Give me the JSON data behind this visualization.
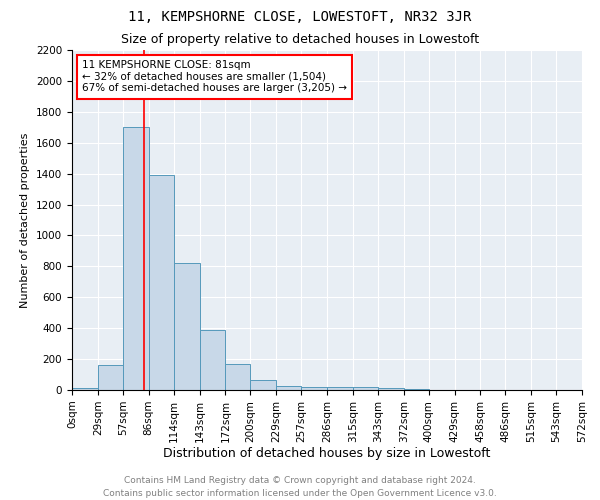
{
  "title": "11, KEMPSHORNE CLOSE, LOWESTOFT, NR32 3JR",
  "subtitle": "Size of property relative to detached houses in Lowestoft",
  "xlabel": "Distribution of detached houses by size in Lowestoft",
  "ylabel": "Number of detached properties",
  "bin_edges": [
    0,
    29,
    57,
    86,
    114,
    143,
    172,
    200,
    229,
    257,
    286,
    315,
    343,
    372,
    400,
    429,
    458,
    486,
    515,
    543,
    572
  ],
  "bar_heights": [
    10,
    160,
    1700,
    1390,
    820,
    390,
    170,
    65,
    25,
    20,
    20,
    20,
    10,
    5,
    0,
    0,
    0,
    0,
    0,
    0
  ],
  "bar_color": "#c8d8e8",
  "bar_edge_color": "#5599bb",
  "red_line_x": 81,
  "annotation_text": "11 KEMPSHORNE CLOSE: 81sqm\n← 32% of detached houses are smaller (1,504)\n67% of semi-detached houses are larger (3,205) →",
  "annotation_box_color": "white",
  "annotation_box_edge": "red",
  "ylim": [
    0,
    2200
  ],
  "yticks": [
    0,
    200,
    400,
    600,
    800,
    1000,
    1200,
    1400,
    1600,
    1800,
    2000,
    2200
  ],
  "background_color": "#e8eef4",
  "footer_line1": "Contains HM Land Registry data © Crown copyright and database right 2024.",
  "footer_line2": "Contains public sector information licensed under the Open Government Licence v3.0.",
  "title_fontsize": 10,
  "subtitle_fontsize": 9,
  "xlabel_fontsize": 9,
  "ylabel_fontsize": 8,
  "tick_fontsize": 7.5,
  "annot_fontsize": 7.5,
  "footer_fontsize": 6.5
}
